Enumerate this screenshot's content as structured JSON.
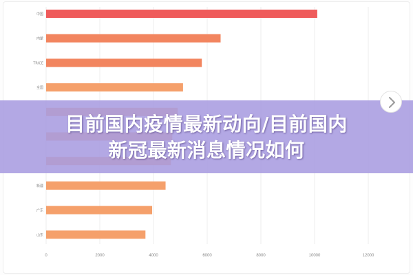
{
  "headline": {
    "line1": "目前国内疫情最新动向/目前国内",
    "line2": "新冠最新消息情况如何"
  },
  "colors": {
    "bar_top": "#ef5b5b",
    "bar_mid": "#f2855f",
    "bar_bottom": "#f5a06b",
    "overlay": "#a89ce0",
    "grid": "#ededed",
    "tick": "#888888"
  },
  "icons": {
    "next": "chevron-right-icon"
  },
  "chart_data": {
    "type": "bar",
    "orientation": "horizontal",
    "categories": [
      "中国",
      "内蒙",
      "TRICE",
      "全国",
      "",
      "",
      "",
      "新疆",
      "广东",
      "山东"
    ],
    "values": [
      10100,
      6500,
      5800,
      5100,
      4900,
      4700,
      4650,
      4450,
      3950,
      3700
    ],
    "xlim": [
      0,
      12000
    ],
    "xticks": [
      0,
      2000,
      4000,
      6000,
      8000,
      10000,
      12000
    ],
    "grid": true
  }
}
